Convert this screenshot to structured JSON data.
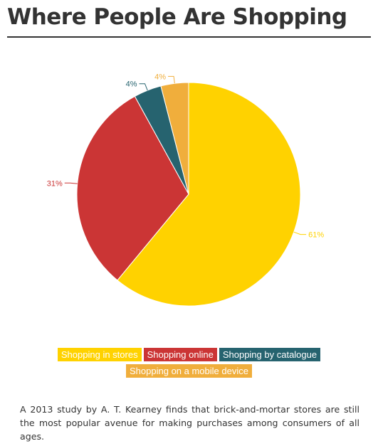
{
  "header": {
    "title": "Where People Are Shopping"
  },
  "chart_data": {
    "type": "pie",
    "title": "Where People Are Shopping",
    "categories": [
      "Shopping in stores",
      "Shopping online",
      "Shopping by catalogue",
      "Shopping on a mobile device"
    ],
    "values": [
      61,
      31,
      4,
      4
    ],
    "data_labels": [
      "61%",
      "31%",
      "4%",
      "4%"
    ],
    "colors": [
      "#FFD200",
      "#CB3535",
      "#26636F",
      "#F0AE3C"
    ],
    "start": "top, clockwise",
    "legend_position": "bottom"
  },
  "legend": {
    "items": [
      {
        "label": "Shopping in stores",
        "color": "#FFD200"
      },
      {
        "label": "Shopping online",
        "color": "#CB3535"
      },
      {
        "label": "Shopping by catalogue",
        "color": "#26636F"
      },
      {
        "label": "Shopping on a mobile device",
        "color": "#F0AE3C"
      }
    ]
  },
  "caption": "A 2013 study by A. T. Kearney finds that brick-and-mortar stores are still the most popular avenue for making purchases among consumers of all ages."
}
